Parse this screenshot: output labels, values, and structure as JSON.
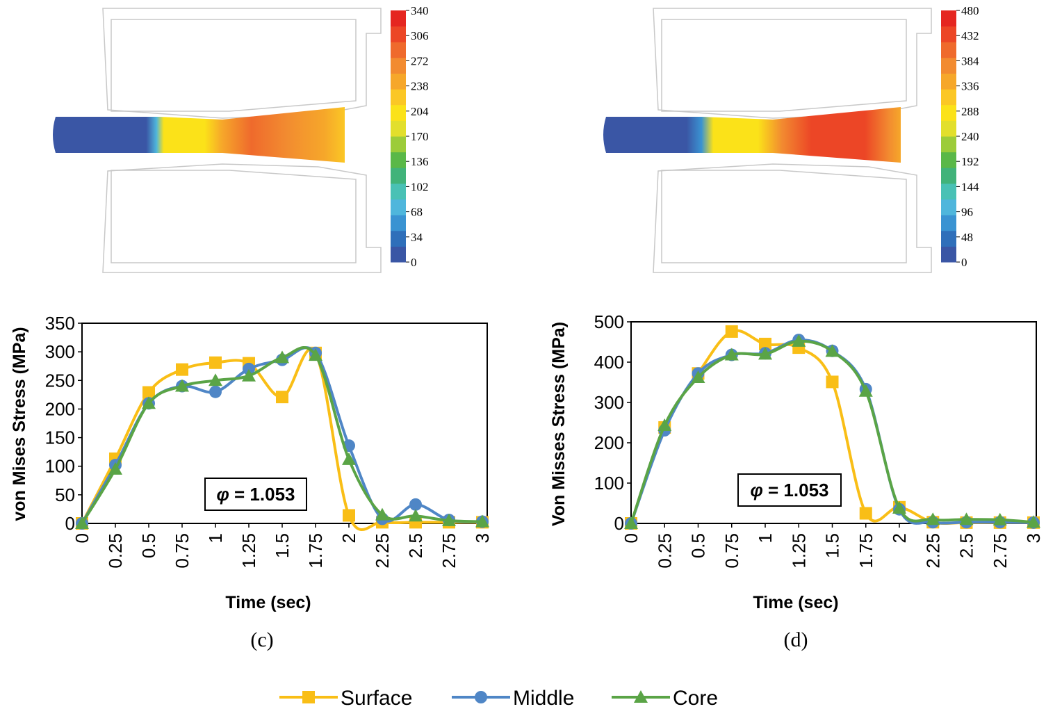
{
  "colors": {
    "surface": "#f9be16",
    "middle": "#4f86c6",
    "core": "#5aa446",
    "colormap": [
      "#3a56a5",
      "#2f6fba",
      "#3a93d2",
      "#4fb6dc",
      "#49c1b5",
      "#41b37a",
      "#5ab848",
      "#9ccc3a",
      "#e2df2c",
      "#fbe219",
      "#fbc725",
      "#f6a72a",
      "#f28b30",
      "#ef6a2c",
      "#ec4626",
      "#e52620"
    ]
  },
  "contours": [
    {
      "name": "left",
      "ticks": [
        "340",
        "306",
        "272",
        "238",
        "204",
        "170",
        "136",
        "102",
        "68",
        "34",
        "0"
      ]
    },
    {
      "name": "right",
      "ticks": [
        "480",
        "432",
        "384",
        "336",
        "288",
        "240",
        "192",
        "144",
        "96",
        "48",
        "0"
      ]
    }
  ],
  "chart_data": [
    {
      "type": "line",
      "caption": "(c)",
      "annotation": "= 1.053",
      "annotation_symbol": "φ",
      "xlabel": "Time (sec)",
      "ylabel": "von Mises Stress (MPa)",
      "x": [
        0,
        0.25,
        0.5,
        0.75,
        1,
        1.25,
        1.5,
        1.75,
        2,
        2.25,
        2.5,
        2.75,
        3
      ],
      "xticklabels": [
        "0",
        "0.25",
        "0.5",
        "0.75",
        "1",
        "1.25",
        "1.5",
        "1.75",
        "2",
        "2.25",
        "2.5",
        "2.75",
        "3"
      ],
      "ylim": [
        0,
        350
      ],
      "yticks": [
        0,
        50,
        100,
        150,
        200,
        250,
        300,
        350
      ],
      "yticklabels": [
        "0",
        "50",
        "100",
        "150",
        "200",
        "250",
        "300",
        "350"
      ],
      "series": [
        {
          "name": "Surface",
          "values": [
            0,
            113,
            229,
            269,
            281,
            280,
            221,
            298,
            14,
            2,
            2,
            2,
            2
          ]
        },
        {
          "name": "Middle",
          "values": [
            0,
            102,
            210,
            240,
            230,
            270,
            286,
            298,
            136,
            8,
            33,
            6,
            3
          ]
        },
        {
          "name": "Core",
          "values": [
            0,
            95,
            210,
            240,
            250,
            258,
            290,
            294,
            112,
            15,
            13,
            5,
            3
          ]
        }
      ]
    },
    {
      "type": "line",
      "caption": "(d)",
      "annotation": "= 1.053",
      "annotation_symbol": "φ",
      "xlabel": "Time (sec)",
      "ylabel": "Von Misses Stress (MPa)",
      "x": [
        0,
        0.25,
        0.5,
        0.75,
        1,
        1.25,
        1.5,
        1.75,
        2,
        2.25,
        2.5,
        2.75,
        3
      ],
      "xticklabels": [
        "0",
        "0.25",
        "0.5",
        "0.75",
        "1",
        "1.25",
        "1.5",
        "1.75",
        "2",
        "2.25",
        "2.5",
        "2.75",
        "3"
      ],
      "ylim": [
        0,
        500
      ],
      "yticks": [
        0,
        100,
        200,
        300,
        400,
        500
      ],
      "yticklabels": [
        "0",
        "100",
        "200",
        "300",
        "400",
        "500"
      ],
      "series": [
        {
          "name": "Surface",
          "values": [
            0,
            238,
            372,
            476,
            445,
            436,
            351,
            25,
            40,
            3,
            2,
            2,
            2
          ]
        },
        {
          "name": "Middle",
          "values": [
            0,
            231,
            372,
            418,
            422,
            455,
            428,
            333,
            35,
            3,
            3,
            3,
            2
          ]
        },
        {
          "name": "Core",
          "values": [
            0,
            243,
            362,
            418,
            420,
            452,
            427,
            328,
            38,
            10,
            10,
            9,
            3
          ]
        }
      ]
    }
  ],
  "legend": [
    {
      "label": "Surface",
      "marker": "square"
    },
    {
      "label": "Middle",
      "marker": "circle"
    },
    {
      "label": "Core",
      "marker": "triangle"
    }
  ]
}
